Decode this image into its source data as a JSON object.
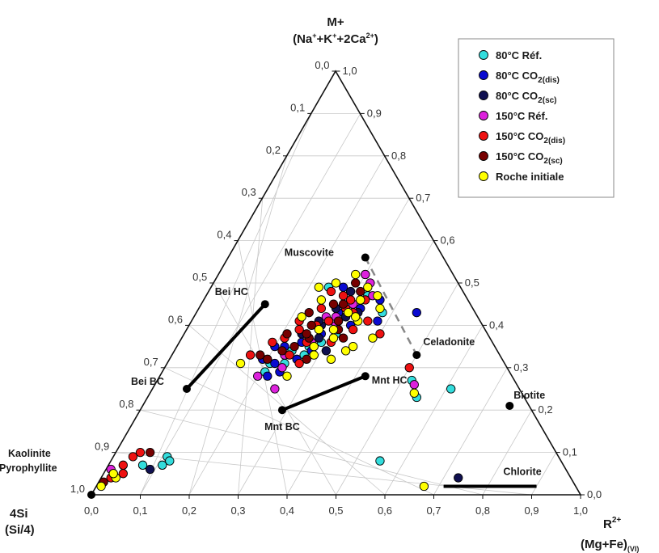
{
  "chart_data": {
    "type": "scatter",
    "subtype": "ternary",
    "apex_labels": {
      "top": {
        "line1": "M+",
        "line2": "(Na+K+2Ca2+)"
      },
      "left": {
        "line1": "4Si",
        "line2": "(Si/4)"
      },
      "right": {
        "line1": "R2+",
        "line2": "(Mg+Fe)(VI)"
      }
    },
    "ticks": {
      "bottom": [
        "0,0",
        "0,1",
        "0,2",
        "0,3",
        "0,4",
        "0,5",
        "0,6",
        "0,7",
        "0,8",
        "0,9",
        "1,0"
      ],
      "left": [
        "0,0",
        "0,1",
        "0,2",
        "0,3",
        "0,4",
        "0,5",
        "0,6",
        "0,7",
        "0,8",
        "0,9",
        "1,0"
      ],
      "right": [
        "1,0",
        "0,9",
        "0,8",
        "0,7",
        "0,6",
        "0,5",
        "0,4",
        "0,3",
        "0,2",
        "0,1",
        "0,0"
      ]
    },
    "grid": true,
    "legend_position": "top-right",
    "series": [
      {
        "name": "80°C Réf.",
        "color": "#33dddd",
        "points": [
          [
            0.52,
            0.27
          ],
          [
            0.55,
            0.23
          ],
          [
            0.61,
            0.25
          ],
          [
            0.07,
            0.07
          ],
          [
            0.11,
            0.09
          ],
          [
            0.12,
            0.08
          ],
          [
            0.11,
            0.07
          ],
          [
            0.24,
            0.49
          ],
          [
            0.38,
            0.43
          ],
          [
            0.55,
            0.08
          ],
          [
            0.21,
            0.29
          ],
          [
            0.24,
            0.31
          ],
          [
            0.27,
            0.33
          ],
          [
            0.31,
            0.38
          ],
          [
            0.29,
            0.36
          ],
          [
            0.24,
            0.34
          ],
          [
            0.21,
            0.31
          ],
          [
            0.33,
            0.47
          ],
          [
            0.27,
            0.35
          ]
        ]
      },
      {
        "name": "80°C CO2(dis)",
        "color": "#0a0ad0",
        "points": [
          [
            0.22,
            0.28
          ],
          [
            0.19,
            0.32
          ],
          [
            0.22,
            0.35
          ],
          [
            0.25,
            0.36
          ],
          [
            0.28,
            0.38
          ],
          [
            0.24,
            0.29
          ],
          [
            0.26,
            0.32
          ],
          [
            0.3,
            0.41
          ],
          [
            0.33,
            0.44
          ],
          [
            0.36,
            0.46
          ],
          [
            0.22,
            0.31
          ],
          [
            0.28,
            0.34
          ],
          [
            0.33,
            0.4
          ],
          [
            0.45,
            0.43
          ],
          [
            0.27,
            0.49
          ],
          [
            0.2,
            0.35
          ],
          [
            0.29,
            0.43
          ],
          [
            0.38,
            0.41
          ]
        ]
      },
      {
        "name": "80°C CO2(sc)",
        "color": "#101050",
        "points": [
          [
            0.73,
            0.04
          ],
          [
            0.09,
            0.06
          ],
          [
            0.24,
            0.38
          ],
          [
            0.27,
            0.4
          ],
          [
            0.28,
            0.44
          ],
          [
            0.31,
            0.42
          ],
          [
            0.29,
            0.48
          ],
          [
            0.3,
            0.52
          ],
          [
            0.26,
            0.41
          ],
          [
            0.33,
            0.43
          ],
          [
            0.31,
            0.34
          ],
          [
            0.28,
            0.37
          ]
        ]
      },
      {
        "name": "150°C Réf.",
        "color": "#dd22dd",
        "points": [
          [
            0.53,
            0.26
          ],
          [
            0.01,
            0.06
          ],
          [
            0.2,
            0.28
          ],
          [
            0.23,
            0.33
          ],
          [
            0.27,
            0.36
          ],
          [
            0.3,
            0.4
          ],
          [
            0.31,
            0.45
          ],
          [
            0.25,
            0.25
          ],
          [
            0.29,
            0.42
          ],
          [
            0.34,
            0.47
          ],
          [
            0.3,
            0.52
          ],
          [
            0.24,
            0.3
          ],
          [
            0.27,
            0.42
          ],
          [
            0.32,
            0.5
          ]
        ]
      },
      {
        "name": "150°C CO2(dis)",
        "color": "#ee1111",
        "points": [
          [
            0.5,
            0.3
          ],
          [
            0.04,
            0.09
          ],
          [
            0.05,
            0.1
          ],
          [
            0.03,
            0.07
          ],
          [
            0.16,
            0.33
          ],
          [
            0.19,
            0.36
          ],
          [
            0.22,
            0.41
          ],
          [
            0.25,
            0.44
          ],
          [
            0.28,
            0.47
          ],
          [
            0.23,
            0.39
          ],
          [
            0.26,
            0.4
          ],
          [
            0.3,
            0.44
          ],
          [
            0.33,
            0.46
          ],
          [
            0.27,
            0.31
          ],
          [
            0.24,
            0.33
          ],
          [
            0.31,
            0.36
          ],
          [
            0.34,
            0.39
          ],
          [
            0.36,
            0.41
          ],
          [
            0.21,
            0.37
          ],
          [
            0.28,
            0.41
          ],
          [
            0.32,
            0.43
          ],
          [
            0.25,
            0.48
          ],
          [
            0.3,
            0.46
          ],
          [
            0.26,
            0.36
          ],
          [
            0.4,
            0.38
          ],
          [
            0.02,
            0.04
          ],
          [
            0.04,
            0.05
          ]
        ]
      },
      {
        "name": "150°C CO2(sc)",
        "color": "#770000",
        "points": [
          [
            0.07,
            0.1
          ],
          [
            0.02,
            0.05
          ],
          [
            0.01,
            0.03
          ],
          [
            0.18,
            0.33
          ],
          [
            0.21,
            0.38
          ],
          [
            0.25,
            0.4
          ],
          [
            0.29,
            0.45
          ],
          [
            0.23,
            0.43
          ],
          [
            0.27,
            0.45
          ],
          [
            0.26,
            0.37
          ],
          [
            0.24,
            0.35
          ],
          [
            0.28,
            0.32
          ],
          [
            0.33,
            0.37
          ],
          [
            0.31,
            0.48
          ],
          [
            0.29,
            0.5
          ],
          [
            0.2,
            0.32
          ],
          [
            0.22,
            0.34
          ],
          [
            0.25,
            0.38
          ],
          [
            0.3,
            0.41
          ],
          [
            0.31,
            0.39
          ]
        ]
      },
      {
        "name": "Roche initiale",
        "color": "#ffff00",
        "points": [
          [
            0.54,
            0.24
          ],
          [
            0.67,
            0.02
          ],
          [
            0.03,
            0.04
          ],
          [
            0.02,
            0.05
          ],
          [
            0.01,
            0.02
          ],
          [
            0.15,
            0.31
          ],
          [
            0.26,
            0.28
          ],
          [
            0.28,
            0.35
          ],
          [
            0.31,
            0.37
          ],
          [
            0.34,
            0.41
          ],
          [
            0.37,
            0.44
          ],
          [
            0.39,
            0.37
          ],
          [
            0.35,
            0.34
          ],
          [
            0.22,
            0.42
          ],
          [
            0.24,
            0.46
          ],
          [
            0.27,
            0.39
          ],
          [
            0.3,
            0.39
          ],
          [
            0.32,
            0.46
          ],
          [
            0.33,
            0.42
          ],
          [
            0.35,
            0.47
          ],
          [
            0.28,
            0.52
          ],
          [
            0.25,
            0.5
          ],
          [
            0.22,
            0.49
          ],
          [
            0.31,
            0.43
          ],
          [
            0.36,
            0.35
          ],
          [
            0.29,
            0.33
          ],
          [
            0.33,
            0.32
          ],
          [
            0.32,
            0.49
          ]
        ]
      }
    ],
    "reference_points": [
      {
        "label": "Muscovite",
        "x": 0.28,
        "y": 0.56
      },
      {
        "label": "Celadonite",
        "x": 0.5,
        "y": 0.33
      },
      {
        "label": "Biotite",
        "x": 0.75,
        "y": 0.21
      },
      {
        "label": "Bei HC",
        "x": 0.13,
        "y": 0.45
      },
      {
        "label": "Bei BC",
        "x": 0.07,
        "y": 0.25
      },
      {
        "label": "Mnt HC",
        "x": 0.42,
        "y": 0.28
      },
      {
        "label": "Mnt BC",
        "x": 0.29,
        "y": 0.2
      },
      {
        "label": "Kaolinite",
        "x": 0.0,
        "y": 0.0
      },
      {
        "label": "Pyrophyllite",
        "x": 0.0,
        "y": 0.0
      },
      {
        "label": "Chlorite",
        "x": 0.8,
        "y": 0.02
      }
    ],
    "reference_lines": [
      {
        "from": "Bei BC",
        "to": "Bei HC",
        "style": "solid"
      },
      {
        "from": "Mnt BC",
        "to": "Mnt HC",
        "style": "solid"
      },
      {
        "from": "Muscovite",
        "to": "Celadonite",
        "style": "dashed"
      },
      {
        "from_x": 0.71,
        "to_x": 0.9,
        "y": 0.02,
        "label": "Chlorite",
        "style": "solid"
      }
    ]
  }
}
